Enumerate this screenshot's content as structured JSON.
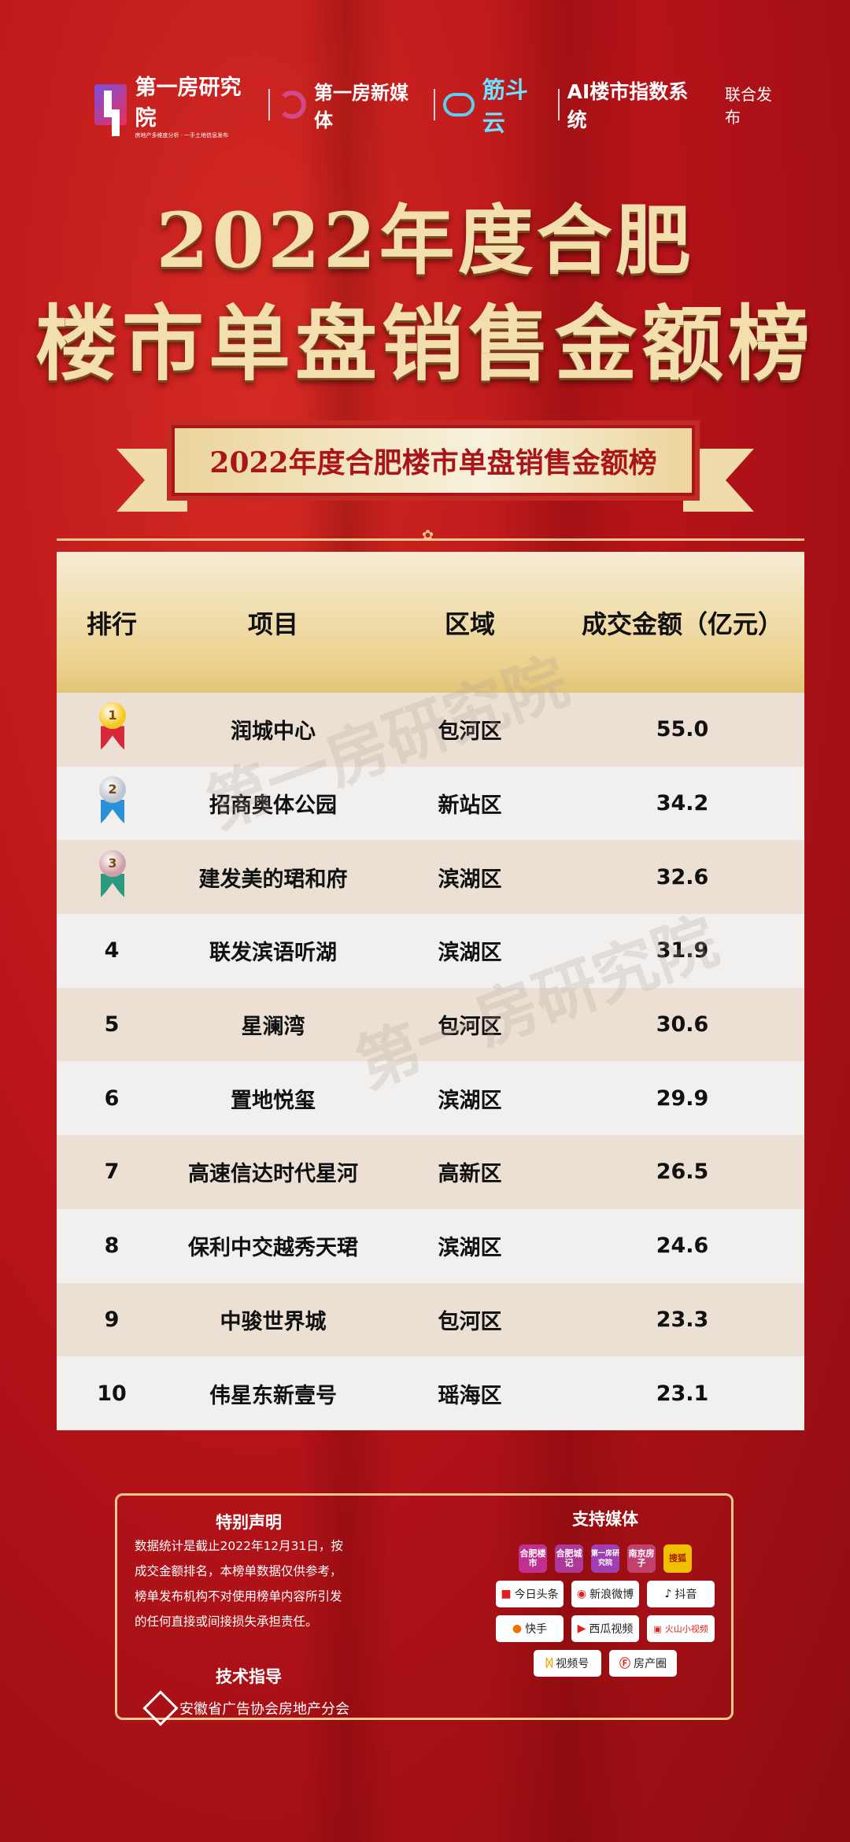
{
  "header": {
    "logos": [
      {
        "name": "第一房研究院",
        "sub": "房地产多维度分析 · 一手土地信息发布"
      },
      {
        "name": "第一房新媒体"
      },
      {
        "name": "筋斗云"
      },
      {
        "name": "AI楼市指数系统"
      }
    ],
    "joint": "联合发布"
  },
  "title": {
    "line1": "2022年度合肥",
    "line2": "楼市单盘销售金额榜",
    "banner": "2022年度合肥楼市单盘销售金额榜"
  },
  "watermark": "第一房研究院",
  "table": {
    "headers": [
      "排行",
      "项目",
      "区域",
      "成交金额（亿元）"
    ],
    "rows": [
      {
        "rank": "1",
        "project": "润城中心",
        "district": "包河区",
        "amount": "55.0"
      },
      {
        "rank": "2",
        "project": "招商奥体公园",
        "district": "新站区",
        "amount": "34.2"
      },
      {
        "rank": "3",
        "project": "建发美的珺和府",
        "district": "滨湖区",
        "amount": "32.6"
      },
      {
        "rank": "4",
        "project": "联发滨语听湖",
        "district": "滨湖区",
        "amount": "31.9"
      },
      {
        "rank": "5",
        "project": "星澜湾",
        "district": "包河区",
        "amount": "30.6"
      },
      {
        "rank": "6",
        "project": "置地悦玺",
        "district": "滨湖区",
        "amount": "29.9"
      },
      {
        "rank": "7",
        "project": "高速信达时代星河",
        "district": "高新区",
        "amount": "26.5"
      },
      {
        "rank": "8",
        "project": "保利中交越秀天珺",
        "district": "滨湖区",
        "amount": "24.6"
      },
      {
        "rank": "9",
        "project": "中骏世界城",
        "district": "包河区",
        "amount": "23.3"
      },
      {
        "rank": "10",
        "project": "伟星东新壹号",
        "district": "瑶海区",
        "amount": "23.1"
      }
    ]
  },
  "footer": {
    "statement_title": "特别声明",
    "statement": "数据统计是截止2022年12月31日，按成交金额排名，本榜单数据仅供参考，榜单发布机构不对使用榜单内容所引发的任何直接或间接损失承担责任。",
    "tech_title": "技术指导",
    "tech_org": "安徽省广告协会房地产分会",
    "media_title": "支持媒体",
    "media_row1": [
      "合肥楼市",
      "合肥城记",
      "第一房研究院",
      "南京房子",
      "搜狐"
    ],
    "media_row2": [
      "今日头条",
      "新浪微博",
      "抖音"
    ],
    "media_row3": [
      "快手",
      "西瓜视频",
      "火山小视频"
    ],
    "media_row4": [
      "视频号",
      "房产圈"
    ]
  }
}
